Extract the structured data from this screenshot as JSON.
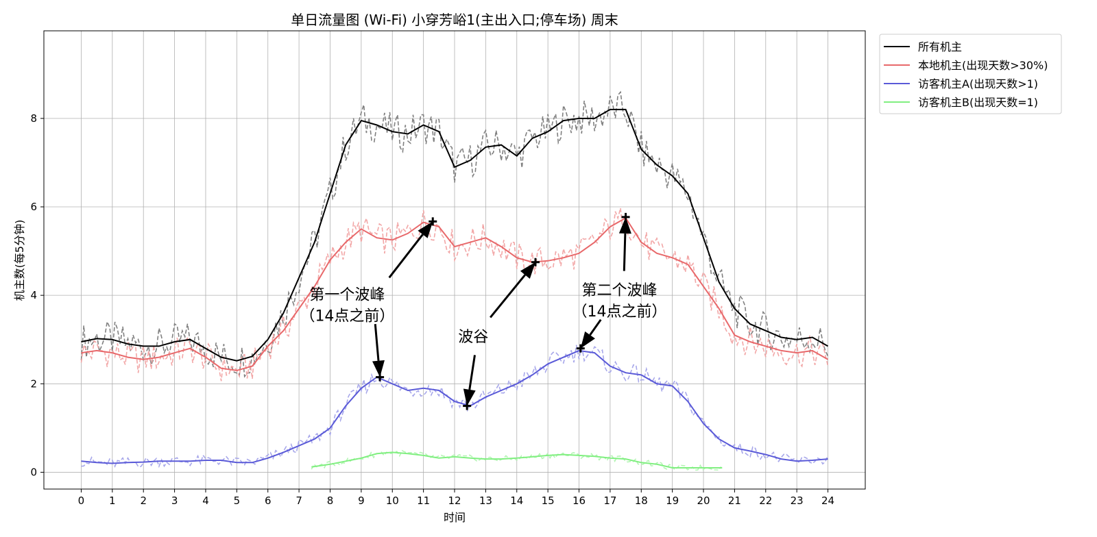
{
  "chart_data": {
    "type": "line",
    "title": "单日流量图 (Wi-Fi) 小穿芳峪1(主出入口;停车场) 周末",
    "xlabel": "时间",
    "ylabel": "机主数(每5分钟)",
    "xlim": [
      -1.2,
      25.2
    ],
    "ylim": [
      -0.38,
      9.98
    ],
    "xticks": [
      0,
      1,
      2,
      3,
      4,
      5,
      6,
      7,
      8,
      9,
      10,
      11,
      12,
      13,
      14,
      15,
      16,
      17,
      18,
      19,
      20,
      21,
      22,
      23,
      24
    ],
    "yticks": [
      0,
      2,
      4,
      6,
      8
    ],
    "grid": true,
    "legend_position": "outside-top-right",
    "series": [
      {
        "name": "所有机主",
        "color": "#000000",
        "x": [
          0,
          0.5,
          1,
          1.5,
          2,
          2.5,
          3,
          3.5,
          4,
          4.5,
          5,
          5.5,
          6,
          6.5,
          7,
          7.5,
          8,
          8.5,
          9,
          9.5,
          10,
          10.5,
          11,
          11.5,
          12,
          12.5,
          13,
          13.5,
          14,
          14.5,
          15,
          15.5,
          16,
          16.5,
          17,
          17.5,
          18,
          18.5,
          19,
          19.5,
          20,
          20.5,
          21,
          21.5,
          22,
          22.5,
          23,
          23.5,
          24
        ],
        "values": [
          2.95,
          3.02,
          3.0,
          2.9,
          2.85,
          2.85,
          2.95,
          3.0,
          2.8,
          2.6,
          2.52,
          2.62,
          3.0,
          3.6,
          4.4,
          5.2,
          6.3,
          7.4,
          7.95,
          7.85,
          7.7,
          7.65,
          7.85,
          7.7,
          6.9,
          7.05,
          7.35,
          7.4,
          7.15,
          7.55,
          7.7,
          7.95,
          8.0,
          8.0,
          8.2,
          8.2,
          7.3,
          6.95,
          6.7,
          6.3,
          5.3,
          4.3,
          3.7,
          3.35,
          3.2,
          3.05,
          3.0,
          3.05,
          2.85
        ]
      },
      {
        "name": "本地机主(出现天数>30%)",
        "color": "#e8686a",
        "x": [
          0,
          0.5,
          1,
          1.5,
          2,
          2.5,
          3,
          3.5,
          4,
          4.5,
          5,
          5.5,
          6,
          6.5,
          7,
          7.5,
          8,
          8.5,
          9,
          9.5,
          10,
          10.5,
          11,
          11.5,
          12,
          12.5,
          13,
          13.5,
          14,
          14.5,
          15,
          15.5,
          16,
          16.5,
          17,
          17.5,
          18,
          18.5,
          19,
          19.5,
          20,
          20.5,
          21,
          21.5,
          22,
          22.5,
          23,
          23.5,
          24
        ],
        "values": [
          2.7,
          2.75,
          2.7,
          2.6,
          2.55,
          2.6,
          2.7,
          2.8,
          2.6,
          2.35,
          2.3,
          2.4,
          2.85,
          3.2,
          3.7,
          4.2,
          4.8,
          5.2,
          5.5,
          5.3,
          5.25,
          5.4,
          5.65,
          5.55,
          5.1,
          5.2,
          5.3,
          5.1,
          4.85,
          4.75,
          4.78,
          4.85,
          4.95,
          5.2,
          5.55,
          5.75,
          5.2,
          4.95,
          4.85,
          4.7,
          4.2,
          3.7,
          3.1,
          2.95,
          2.85,
          2.75,
          2.7,
          2.75,
          2.55
        ]
      },
      {
        "name": "访客机主A(出现天数>1)",
        "color": "#5a5ad8",
        "x": [
          0,
          0.5,
          1,
          1.5,
          2,
          2.5,
          3,
          3.5,
          4,
          4.5,
          5,
          5.5,
          6,
          6.5,
          7,
          7.5,
          8,
          8.5,
          9,
          9.5,
          10,
          10.5,
          11,
          11.5,
          12,
          12.5,
          13,
          13.5,
          14,
          14.5,
          15,
          15.5,
          16,
          16.5,
          17,
          17.5,
          18,
          18.5,
          19,
          19.5,
          20,
          20.5,
          21,
          21.5,
          22,
          22.5,
          23,
          23.5,
          24
        ],
        "values": [
          0.25,
          0.22,
          0.2,
          0.22,
          0.23,
          0.25,
          0.25,
          0.25,
          0.27,
          0.27,
          0.22,
          0.22,
          0.32,
          0.45,
          0.6,
          0.75,
          1.0,
          1.5,
          1.9,
          2.15,
          2.0,
          1.85,
          1.9,
          1.85,
          1.6,
          1.5,
          1.7,
          1.85,
          2.0,
          2.2,
          2.45,
          2.6,
          2.75,
          2.7,
          2.4,
          2.25,
          2.2,
          2.0,
          1.95,
          1.6,
          1.1,
          0.75,
          0.55,
          0.48,
          0.4,
          0.3,
          0.25,
          0.27,
          0.3
        ]
      },
      {
        "name": "访客机主B(出现天数=1)",
        "color": "#80ef80",
        "x": [
          7.4,
          8,
          8.5,
          9,
          9.5,
          10,
          10.5,
          11,
          11.5,
          12,
          12.5,
          13,
          13.5,
          14,
          14.5,
          15,
          15.5,
          16,
          16.5,
          17,
          17.5,
          18,
          18.5,
          19,
          19.5,
          20,
          20.6
        ],
        "values": [
          0.12,
          0.18,
          0.25,
          0.32,
          0.42,
          0.45,
          0.42,
          0.38,
          0.32,
          0.35,
          0.32,
          0.3,
          0.3,
          0.32,
          0.35,
          0.38,
          0.4,
          0.38,
          0.36,
          0.32,
          0.3,
          0.22,
          0.18,
          0.1,
          0.1,
          0.1,
          0.1
        ]
      }
    ],
    "markers": [
      {
        "series": "本地机主(出现天数>30%)",
        "x": 11.3,
        "y": 5.67
      },
      {
        "series": "本地机主(出现天数>30%)",
        "x": 14.6,
        "y": 4.75
      },
      {
        "series": "本地机主(出现天数>30%)",
        "x": 17.5,
        "y": 5.77
      },
      {
        "series": "访客机主A(出现天数>1)",
        "x": 9.6,
        "y": 2.15
      },
      {
        "series": "访客机主A(出现天数>1)",
        "x": 12.4,
        "y": 1.5
      },
      {
        "series": "访客机主A(出现天数>1)",
        "x": 16.05,
        "y": 2.8
      }
    ],
    "annotations": [
      {
        "lines": [
          "第一个波峰",
          "（14点之前）"
        ],
        "text_x": 8.55,
        "text_y": 3.9,
        "arrows": [
          {
            "from": [
              9.9,
              4.4
            ],
            "to": [
              11.3,
              5.67
            ]
          },
          {
            "from": [
              9.45,
              3.35
            ],
            "to": [
              9.6,
              2.15
            ]
          }
        ]
      },
      {
        "lines": [
          "波谷"
        ],
        "text_x": 12.6,
        "text_y": 2.95,
        "arrows": [
          {
            "from": [
              13.15,
              3.5
            ],
            "to": [
              14.6,
              4.75
            ]
          },
          {
            "from": [
              12.65,
              2.65
            ],
            "to": [
              12.4,
              1.5
            ]
          }
        ]
      },
      {
        "lines": [
          "第二个波峰",
          "（14点之前）"
        ],
        "text_x": 17.3,
        "text_y": 4.0,
        "arrows": [
          {
            "from": [
              17.45,
              4.55
            ],
            "to": [
              17.5,
              5.77
            ]
          },
          {
            "from": [
              16.7,
              3.45
            ],
            "to": [
              16.05,
              2.8
            ]
          }
        ]
      }
    ]
  }
}
